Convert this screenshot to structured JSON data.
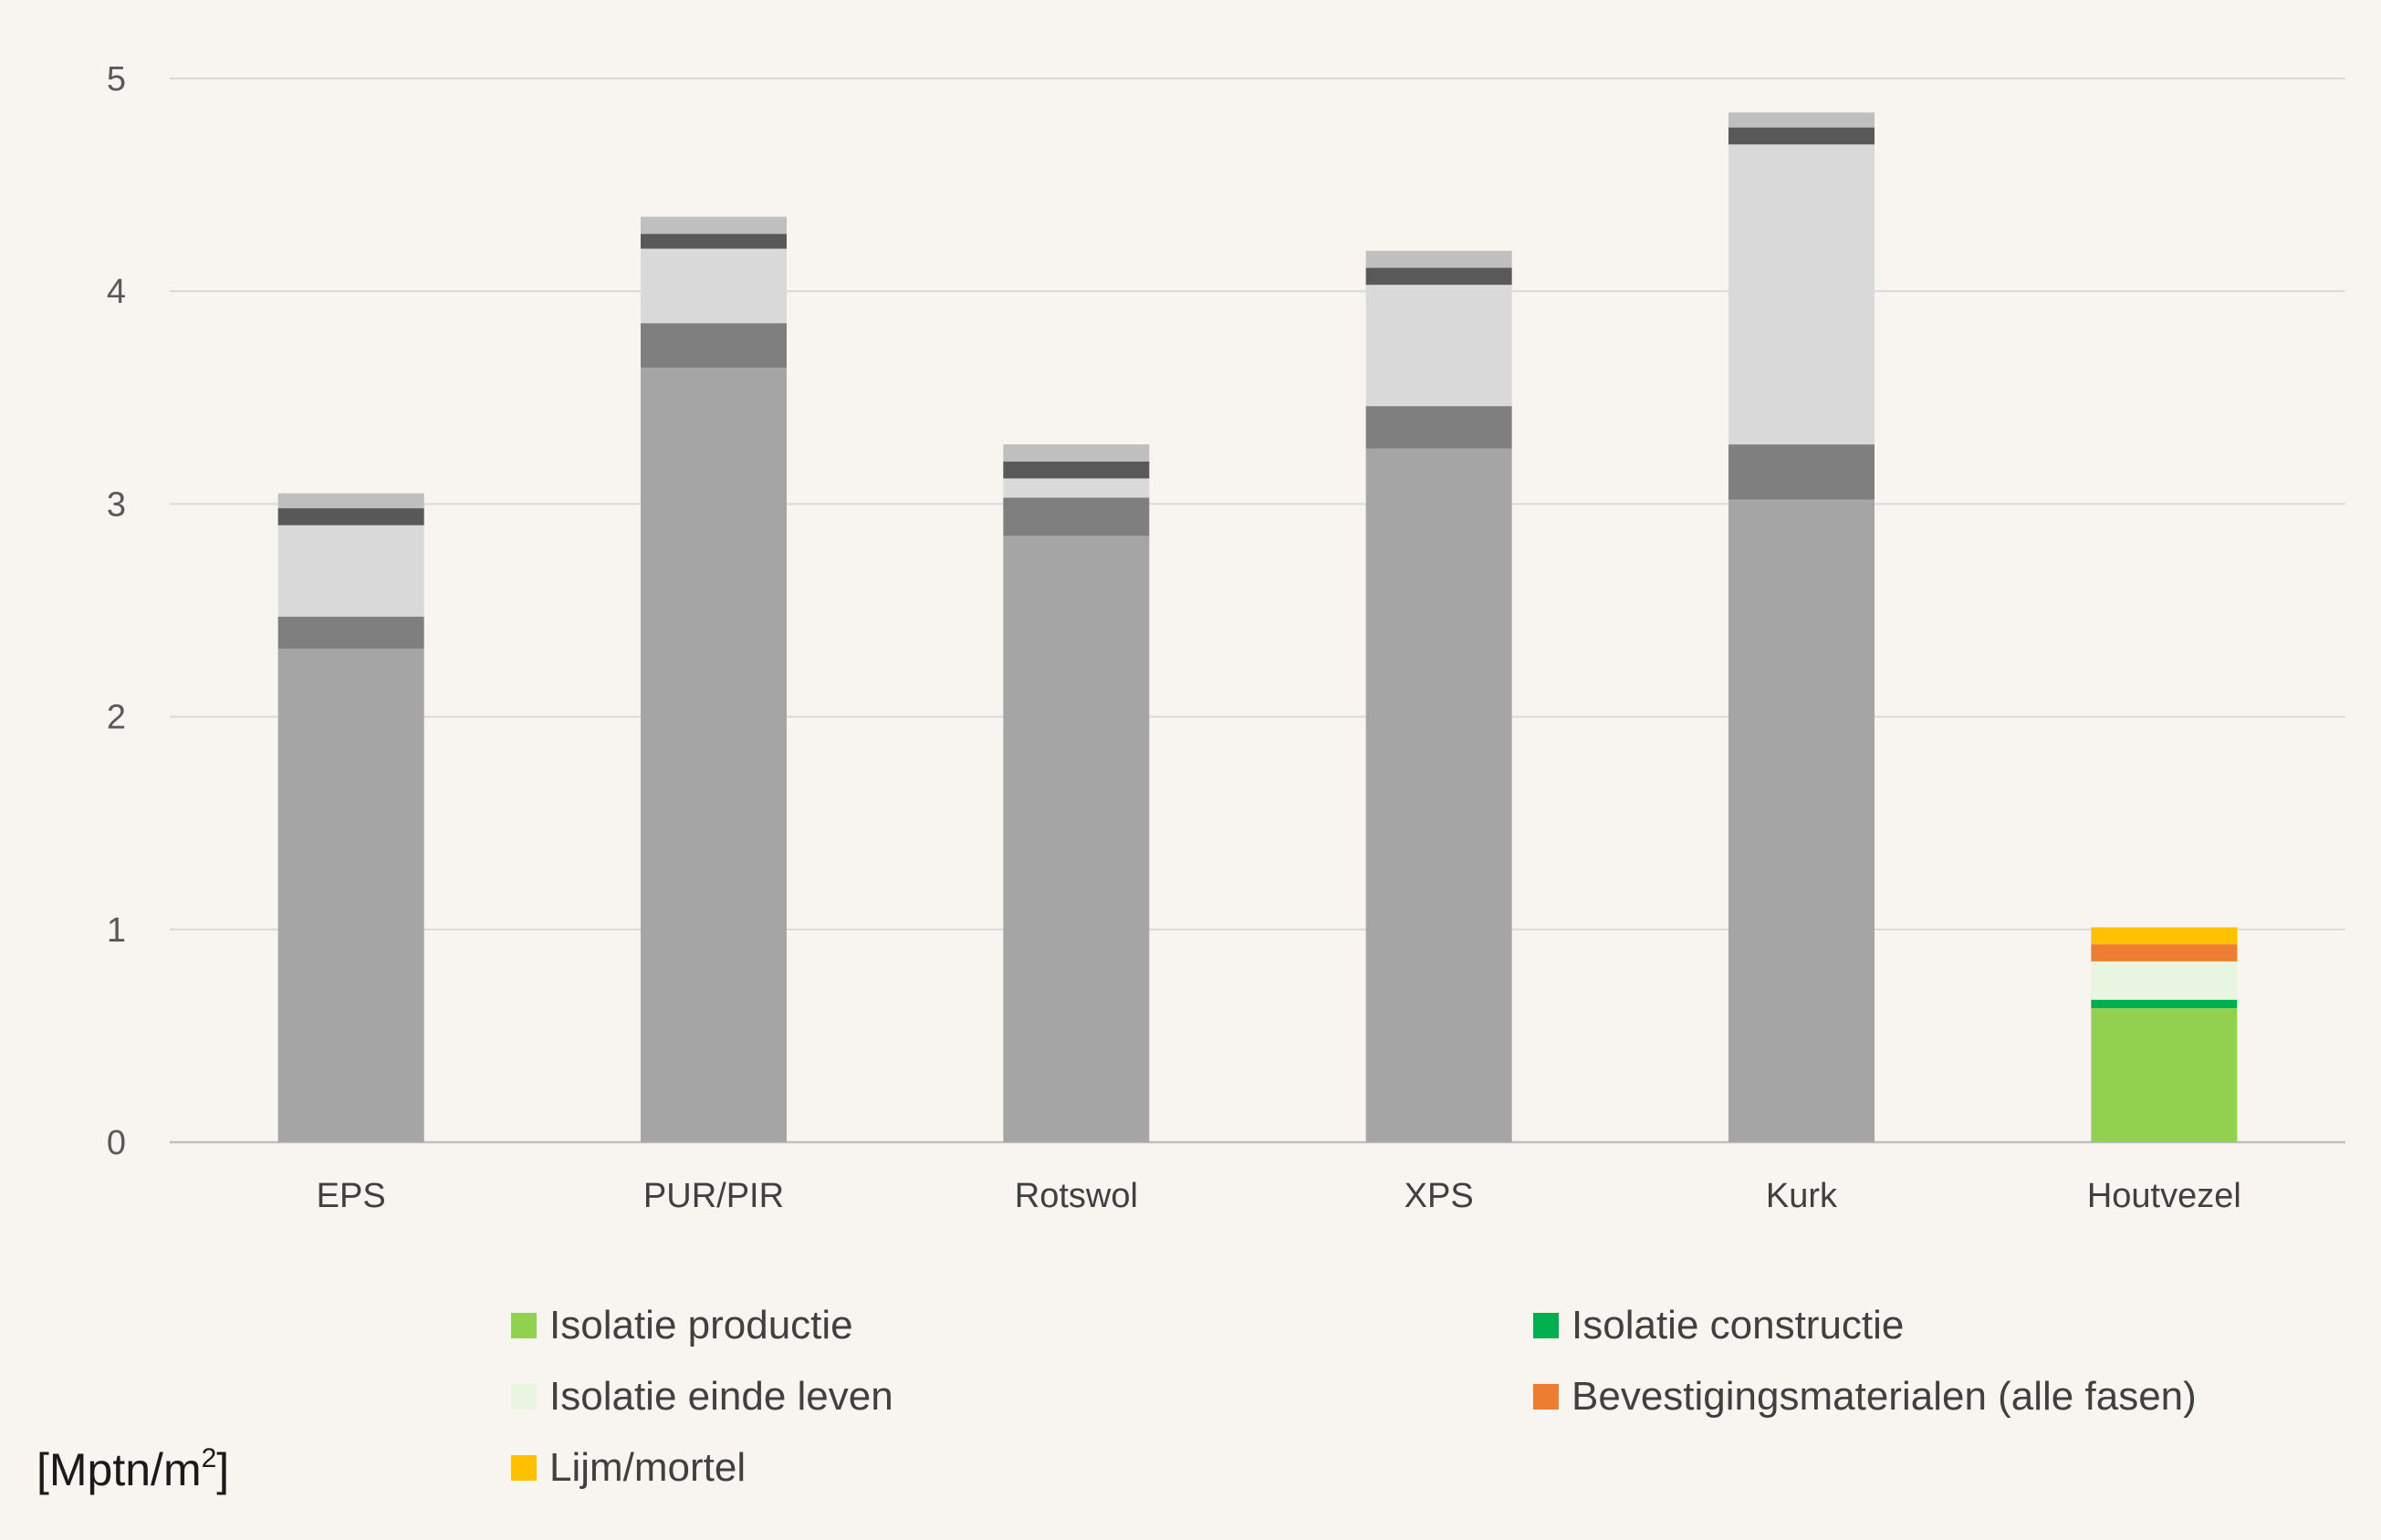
{
  "chart_data": {
    "type": "bar",
    "stacked": true,
    "categories": [
      "EPS",
      "PUR/PIR",
      "Rotswol",
      "XPS",
      "Kurk",
      "Houtvezel"
    ],
    "ylim": [
      0,
      5
    ],
    "yticks": [
      0,
      1,
      2,
      3,
      4,
      5
    ],
    "grid": true,
    "legend_position": "bottom",
    "segments": [
      {
        "values": [
          2.32,
          3.64,
          2.85,
          3.26,
          3.02,
          0.63
        ],
        "colors": [
          "#a5a5a5",
          "#a5a5a5",
          "#a5a5a5",
          "#a5a5a5",
          "#a5a5a5",
          "#92d050"
        ]
      },
      {
        "values": [
          0.15,
          0.21,
          0.18,
          0.2,
          0.26,
          0.04
        ],
        "colors": [
          "#7f7f7f",
          "#7f7f7f",
          "#7f7f7f",
          "#7f7f7f",
          "#7f7f7f",
          "#00b050"
        ]
      },
      {
        "values": [
          0.43,
          0.35,
          0.09,
          0.57,
          1.41,
          0.18
        ],
        "colors": [
          "#d9d9d9",
          "#d9d9d9",
          "#d9d9d9",
          "#d9d9d9",
          "#d9d9d9",
          "#e8f5e0"
        ]
      },
      {
        "values": [
          0.08,
          0.07,
          0.08,
          0.08,
          0.08,
          0.08
        ],
        "colors": [
          "#595959",
          "#595959",
          "#595959",
          "#595959",
          "#595959",
          "#ed7d31"
        ]
      },
      {
        "values": [
          0.07,
          0.08,
          0.08,
          0.08,
          0.07,
          0.08
        ],
        "colors": [
          "#bfbfbf",
          "#bfbfbf",
          "#bfbfbf",
          "#bfbfbf",
          "#bfbfbf",
          "#ffc000"
        ]
      }
    ],
    "legend": [
      {
        "label": "Isolatie productie",
        "color": "#92d050"
      },
      {
        "label": "Isolatie constructie",
        "color": "#00b050"
      },
      {
        "label": "Isolatie einde leven",
        "color": "#e8f5e0"
      },
      {
        "label": "Bevestigingsmaterialen (alle fasen)",
        "color": "#ed7d31"
      },
      {
        "label": "Lijm/mortel",
        "color": "#ffc000"
      }
    ],
    "unit_label": "[Mptn/m",
    "unit_sup": "2",
    "unit_close": "]"
  }
}
